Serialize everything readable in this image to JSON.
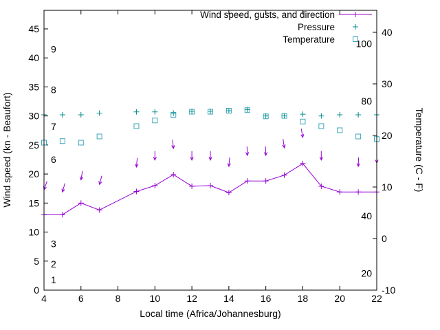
{
  "chart_data": {
    "type": "line",
    "title": "",
    "xlabel": "Local time (Africa/Johannesburg)",
    "ylabel": "Wind speed (kn - Beaufort)",
    "y2label": "Temperature (C - F)",
    "x_range": [
      4,
      22
    ],
    "x_ticks": [
      4,
      6,
      8,
      10,
      12,
      14,
      16,
      18,
      20,
      22
    ],
    "y_left_ticks": [
      0,
      5,
      10,
      15,
      20,
      25,
      30,
      35,
      40,
      45
    ],
    "y_right_ticks": [
      -10,
      0,
      10,
      20,
      30,
      40
    ],
    "grid": false,
    "legend_position": "top-right-inside",
    "legend": [
      {
        "label": "Wind speed, gusts, and direction",
        "series": "wind"
      },
      {
        "label": "Pressure",
        "series": "pressure"
      },
      {
        "label": "Temperature",
        "series": "temperature"
      }
    ],
    "colors": {
      "wind": "#9400d3",
      "pressure": "#008b8b",
      "temperature": "#3aa6b6",
      "axis": "#000000"
    },
    "beaufort_scale_labels": [
      {
        "text": "1",
        "kn": 1.8
      },
      {
        "text": "2",
        "kn": 4.5
      },
      {
        "text": "3",
        "kn": 8.0
      },
      {
        "text": "6",
        "kn": 22.5
      },
      {
        "text": "7",
        "kn": 28.2
      },
      {
        "text": "8",
        "kn": 34.5
      },
      {
        "text": "9",
        "kn": 41.5
      }
    ],
    "fahrenheit_scale_labels": [
      {
        "text": "20",
        "c": -6.7
      },
      {
        "text": "40",
        "c": 4.4
      },
      {
        "text": "80",
        "c": 26.7
      },
      {
        "text": "100",
        "c": 37.8
      }
    ],
    "series": {
      "wind_speed_kn": {
        "hours": [
          4,
          5,
          6,
          7,
          9,
          10,
          11,
          12,
          13,
          14,
          15,
          16,
          17,
          18,
          19,
          20,
          21,
          22
        ],
        "values": [
          13,
          13,
          15,
          13.8,
          17,
          18,
          19.9,
          17.9,
          18,
          16.8,
          18.8,
          18.8,
          19.8,
          21.8,
          17.9,
          16.9,
          16.9,
          16.9
        ]
      },
      "gusts_kn": {
        "hours": [
          4,
          5,
          6,
          7,
          9,
          10,
          11,
          12,
          13,
          14,
          15,
          16,
          17,
          18,
          19,
          21,
          22
        ],
        "values": [
          17.3,
          16.9,
          19,
          18.2,
          21.2,
          22.4,
          24.4,
          22.4,
          22.4,
          21.3,
          23.2,
          23.2,
          24.5,
          26.3,
          22.4,
          21.3,
          21.9
        ],
        "direction_deg": [
          200,
          195,
          190,
          195,
          185,
          180,
          175,
          180,
          180,
          185,
          178,
          178,
          172,
          170,
          180,
          182,
          180
        ]
      },
      "pressure_inhg": {
        "hours": [
          4,
          5,
          6,
          7,
          9,
          10,
          11,
          12,
          13,
          14,
          15,
          16,
          17,
          18,
          19,
          20,
          21,
          22
        ],
        "values": [
          30.2,
          30.2,
          30.2,
          30.5,
          30.7,
          30.7,
          30.5,
          30.8,
          30.8,
          30.9,
          31.1,
          30.0,
          30.0,
          30.3,
          30.0,
          30.2,
          30.2,
          30.2
        ]
      },
      "temperature_c": {
        "hours": [
          4,
          5,
          6,
          7,
          9,
          10,
          11,
          12,
          13,
          14,
          15,
          16,
          17,
          18,
          19,
          20,
          21,
          22
        ],
        "values": [
          18.6,
          18.9,
          18.6,
          19.8,
          21.8,
          22.9,
          24.0,
          24.6,
          24.6,
          24.8,
          24.9,
          23.7,
          23.8,
          22.7,
          21.8,
          21.0,
          19.8,
          19.3
        ]
      }
    }
  }
}
